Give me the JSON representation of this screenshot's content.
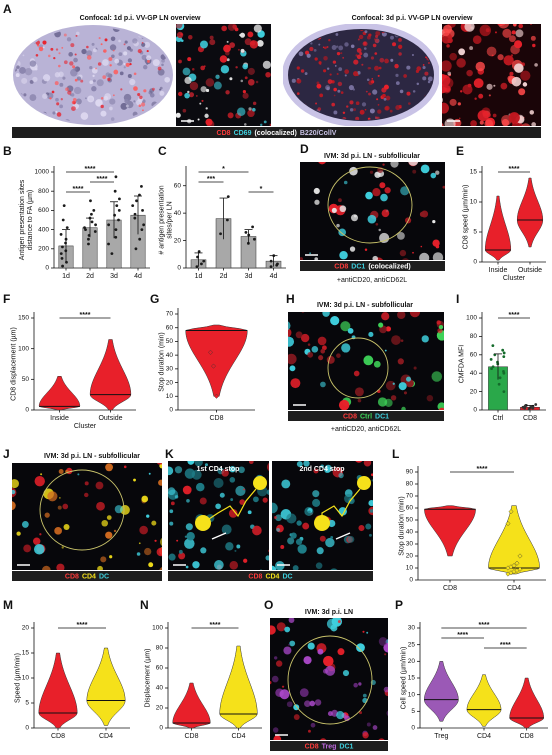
{
  "image_panels": [
    {
      "label": "A",
      "titles": [
        "Confocal: 1d p.i. VV-GP LN overview",
        "Confocal: 3d p.i. VV-GP LN overview"
      ],
      "caption": [
        {
          "text": "CD8",
          "color": "#ff3b3b"
        },
        {
          "text": "CD69",
          "color": "#3fd0df"
        },
        {
          "text": "(colocalized)",
          "color": "#ffffff"
        },
        {
          "text": "B220/CollV",
          "color": "#c9c3e6"
        }
      ]
    },
    {
      "label": "D",
      "titles": [
        "IVM: 3d p.i. LN - subfollicular"
      ],
      "caption": [
        {
          "text": "CD8",
          "color": "#ff3b3b"
        },
        {
          "text": "DC1",
          "color": "#3fd0df"
        },
        {
          "text": "(colocalized)",
          "color": "#ffffff"
        }
      ],
      "note": "+antiCD20, antiCD62L"
    },
    {
      "label": "H",
      "titles": [
        "IVM: 3d p.i. LN - subfollicular"
      ],
      "caption": [
        {
          "text": "CD8",
          "color": "#ff3b3b"
        },
        {
          "text": "Ctrl",
          "color": "#3fd65a"
        },
        {
          "text": "DC1",
          "color": "#3fd0df"
        }
      ],
      "note": "+antiCD20, antiCD62L"
    },
    {
      "label": "J",
      "titles": [
        "IVM: 3d p.i. LN - subfollicular"
      ],
      "caption": [
        {
          "text": "CD8",
          "color": "#ff3b3b"
        },
        {
          "text": "CD4",
          "color": "#f5e11a"
        },
        {
          "text": "DC",
          "color": "#3fd0df"
        }
      ]
    },
    {
      "label": "K",
      "titles": [
        "1st CD4 stop",
        "2nd CD4 stop"
      ],
      "caption": [
        {
          "text": "CD8",
          "color": "#ff3b3b"
        },
        {
          "text": "CD4",
          "color": "#f5e11a"
        },
        {
          "text": "DC",
          "color": "#3fd0df"
        }
      ]
    },
    {
      "label": "O",
      "titles": [
        "IVM: 3d p.i. LN"
      ],
      "caption": [
        {
          "text": "CD8",
          "color": "#ff3b3b"
        },
        {
          "text": "Treg",
          "color": "#c06be0"
        },
        {
          "text": "DC1",
          "color": "#3fd0df"
        }
      ]
    }
  ],
  "chart_data": [
    {
      "type": "bar",
      "label": "B",
      "ylabel": [
        "Antigen presentation sites",
        "distance to FA (µm)"
      ],
      "categories": [
        "1d",
        "2d",
        "3d",
        "4d"
      ],
      "values": [
        230,
        420,
        500,
        550
      ],
      "errors": [
        170,
        100,
        190,
        200
      ],
      "points": [
        [
          20,
          60,
          100,
          150,
          180,
          220,
          260,
          300,
          350,
          420,
          500,
          650
        ],
        [
          250,
          300,
          340,
          380,
          400,
          420,
          450,
          480,
          520,
          560,
          600,
          700
        ],
        [
          150,
          250,
          320,
          400,
          450,
          500,
          550,
          600,
          650,
          720,
          800,
          950
        ],
        [
          200,
          300,
          400,
          450,
          520,
          560,
          600,
          650,
          700,
          760,
          850
        ]
      ],
      "colors": [
        "#a8a8a8",
        "#a8a8a8",
        "#a8a8a8",
        "#a8a8a8"
      ],
      "point_colors": [
        "#1b1b1b",
        "#1b1b1b",
        "#1b1b1b",
        "#1b1b1b"
      ],
      "ylim": [
        0,
        1000
      ],
      "yticks": [
        0,
        200,
        400,
        600,
        800,
        1000
      ],
      "brackets": [
        {
          "between": [
            "1d",
            "3d"
          ],
          "label": "****"
        },
        {
          "between": [
            "2d",
            "3d"
          ],
          "label": "****"
        },
        {
          "between": [
            "1d",
            "2d"
          ],
          "label": "****"
        }
      ]
    },
    {
      "type": "bar",
      "label": "C",
      "ylabel": [
        "# antigen presentation",
        "sites/per LN"
      ],
      "categories": [
        "1d",
        "2d",
        "3d",
        "4d"
      ],
      "values": [
        6,
        36,
        23,
        5
      ],
      "errors": [
        5,
        15,
        5,
        4
      ],
      "points": [
        [
          1,
          3,
          5,
          8,
          12
        ],
        [
          25,
          35,
          52
        ],
        [
          18,
          21,
          24,
          26,
          30
        ],
        [
          1,
          2,
          3,
          5,
          9
        ]
      ],
      "colors": [
        "#a8a8a8",
        "#a8a8a8",
        "#a8a8a8",
        "#a8a8a8"
      ],
      "point_colors": [
        "#1b1b1b",
        "#1b1b1b",
        "#1b1b1b",
        "#1b1b1b"
      ],
      "ylim": [
        0,
        70
      ],
      "yticks": [
        0,
        20,
        40,
        60
      ],
      "brackets": [
        {
          "between": [
            "1d",
            "3d"
          ],
          "label": "*"
        },
        {
          "between": [
            "1d",
            "2d"
          ],
          "label": "***"
        },
        {
          "between": [
            "3d",
            "4d"
          ],
          "label": "*"
        }
      ]
    },
    {
      "type": "violin",
      "label": "E",
      "ylabel": "CD8 speed (µm/min)",
      "categories": [
        "Inside",
        "Outside"
      ],
      "xlabel": "Cluster",
      "values": [
        2,
        7
      ],
      "min": [
        0.3,
        2.5
      ],
      "max": [
        11,
        14
      ],
      "colors": [
        "#e8202a",
        "#e8202a"
      ],
      "ylim": [
        0,
        15
      ],
      "yticks": [
        0,
        5,
        10,
        15
      ],
      "brackets": [
        {
          "between": [
            "Inside",
            "Outside"
          ],
          "label": "****"
        }
      ]
    },
    {
      "type": "violin",
      "label": "F",
      "ylabel": "CD8 displacement (µm)",
      "categories": [
        "Inside",
        "Outside"
      ],
      "xlabel": "Cluster",
      "values": [
        6,
        25
      ],
      "min": [
        0,
        0
      ],
      "max": [
        55,
        115
      ],
      "colors": [
        "#e8202a",
        "#e8202a"
      ],
      "ylim": [
        0,
        150
      ],
      "yticks": [
        0,
        50,
        100,
        150
      ],
      "brackets": [
        {
          "between": [
            "Inside",
            "Outside"
          ],
          "label": "****"
        }
      ]
    },
    {
      "type": "violin",
      "label": "G",
      "ylabel": "Stop duration (min)",
      "categories": [
        "CD8"
      ],
      "values": [
        58
      ],
      "min": [
        10
      ],
      "max": [
        62
      ],
      "points": [
        [
          42,
          32,
          10
        ]
      ],
      "point_colors": [
        "#e8202a"
      ],
      "colors": [
        "#e8202a"
      ],
      "ylim": [
        0,
        70
      ],
      "yticks": [
        0,
        10,
        20,
        30,
        40,
        50,
        60,
        70
      ]
    },
    {
      "type": "bar",
      "label": "I",
      "ylabel": "CMFDA MFI",
      "categories": [
        "Ctrl",
        "CD8"
      ],
      "values": [
        47,
        3
      ],
      "errors": [
        14,
        2
      ],
      "points": [
        [
          20,
          28,
          35,
          40,
          42,
          45,
          47,
          50,
          52,
          55,
          58,
          60,
          62,
          65,
          70
        ],
        [
          1,
          2,
          2,
          3,
          3,
          4,
          4,
          5,
          5,
          6
        ]
      ],
      "colors": [
        "#2aa84a",
        "#e8202a"
      ],
      "point_colors": [
        "#146b2b",
        "#333333"
      ],
      "ylim": [
        0,
        100
      ],
      "yticks": [
        0,
        20,
        40,
        60,
        80,
        100
      ],
      "brackets": [
        {
          "between": [
            "Ctrl",
            "CD8"
          ],
          "label": "****"
        }
      ]
    },
    {
      "type": "violin",
      "label": "L",
      "ylabel": "Stop duration (min)",
      "categories": [
        "CD8",
        "CD4"
      ],
      "values": [
        59,
        10
      ],
      "min": [
        20,
        5
      ],
      "max": [
        62,
        62
      ],
      "points": [
        [],
        [
          5,
          6,
          7,
          8,
          9,
          10,
          11,
          12,
          14,
          20,
          47,
          57
        ]
      ],
      "point_colors": [
        "#e8202a",
        "#f5e11a"
      ],
      "colors": [
        "#e8202a",
        "#f5e11a"
      ],
      "ylim": [
        0,
        90
      ],
      "yticks": [
        0,
        10,
        20,
        30,
        40,
        50,
        60,
        70,
        80,
        90
      ],
      "brackets": [
        {
          "between": [
            "CD8",
            "CD4"
          ],
          "label": "****"
        }
      ]
    },
    {
      "type": "violin",
      "label": "M",
      "ylabel": "Speed (µm/min)",
      "categories": [
        "CD8",
        "CD4"
      ],
      "values": [
        3,
        5.5
      ],
      "min": [
        0,
        0.5
      ],
      "max": [
        15,
        16
      ],
      "colors": [
        "#e8202a",
        "#f5e11a"
      ],
      "ylim": [
        0,
        20
      ],
      "yticks": [
        0,
        5,
        10,
        15,
        20
      ],
      "brackets": [
        {
          "between": [
            "CD8",
            "CD4"
          ],
          "label": "****"
        }
      ]
    },
    {
      "type": "violin",
      "label": "N",
      "ylabel": "Displacement (µm)",
      "categories": [
        "CD8",
        "CD4"
      ],
      "values": [
        5,
        14
      ],
      "min": [
        0,
        0
      ],
      "max": [
        45,
        82
      ],
      "colors": [
        "#e8202a",
        "#f5e11a"
      ],
      "ylim": [
        0,
        100
      ],
      "yticks": [
        0,
        20,
        40,
        60,
        80,
        100
      ],
      "brackets": [
        {
          "between": [
            "CD8",
            "CD4"
          ],
          "label": "****"
        }
      ]
    },
    {
      "type": "violin",
      "label": "P",
      "ylabel": "Cell speed (µm/min)",
      "categories": [
        "Treg",
        "CD4",
        "CD8"
      ],
      "values": [
        8.5,
        5.5,
        3
      ],
      "min": [
        2,
        0.5,
        0
      ],
      "max": [
        20,
        16,
        15
      ],
      "colors": [
        "#9b59b6",
        "#f5e11a",
        "#e8202a"
      ],
      "ylim": [
        0,
        30
      ],
      "yticks": [
        0,
        5,
        10,
        15,
        20,
        25,
        30
      ],
      "brackets": [
        {
          "between": [
            "Treg",
            "CD8"
          ],
          "label": "****"
        },
        {
          "between": [
            "Treg",
            "CD4"
          ],
          "label": "****"
        },
        {
          "between": [
            "CD4",
            "CD8"
          ],
          "label": "****"
        }
      ]
    }
  ]
}
